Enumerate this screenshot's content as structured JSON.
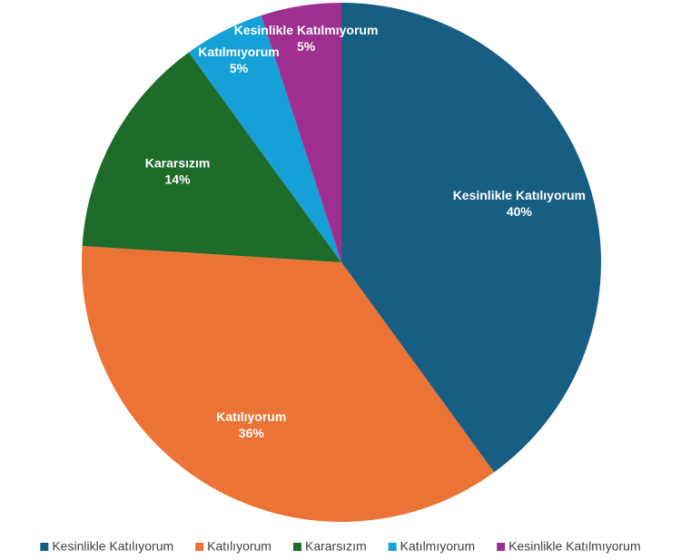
{
  "chart_data": {
    "type": "pie",
    "categories": [
      "Kesinlikle Katılıyorum",
      "Katılıyorum",
      "Kararsızım",
      "Katılmıyorum",
      "Kesinlikle Katılmıyorum"
    ],
    "values": [
      40,
      36,
      14,
      5,
      5
    ],
    "value_labels": [
      "40%",
      "36%",
      "14%",
      "5%",
      "5%"
    ],
    "colors": [
      "#175e82",
      "#eb7335",
      "#1e6b2a",
      "#15a0d8",
      "#9e2f91"
    ],
    "legend": "bottom"
  }
}
